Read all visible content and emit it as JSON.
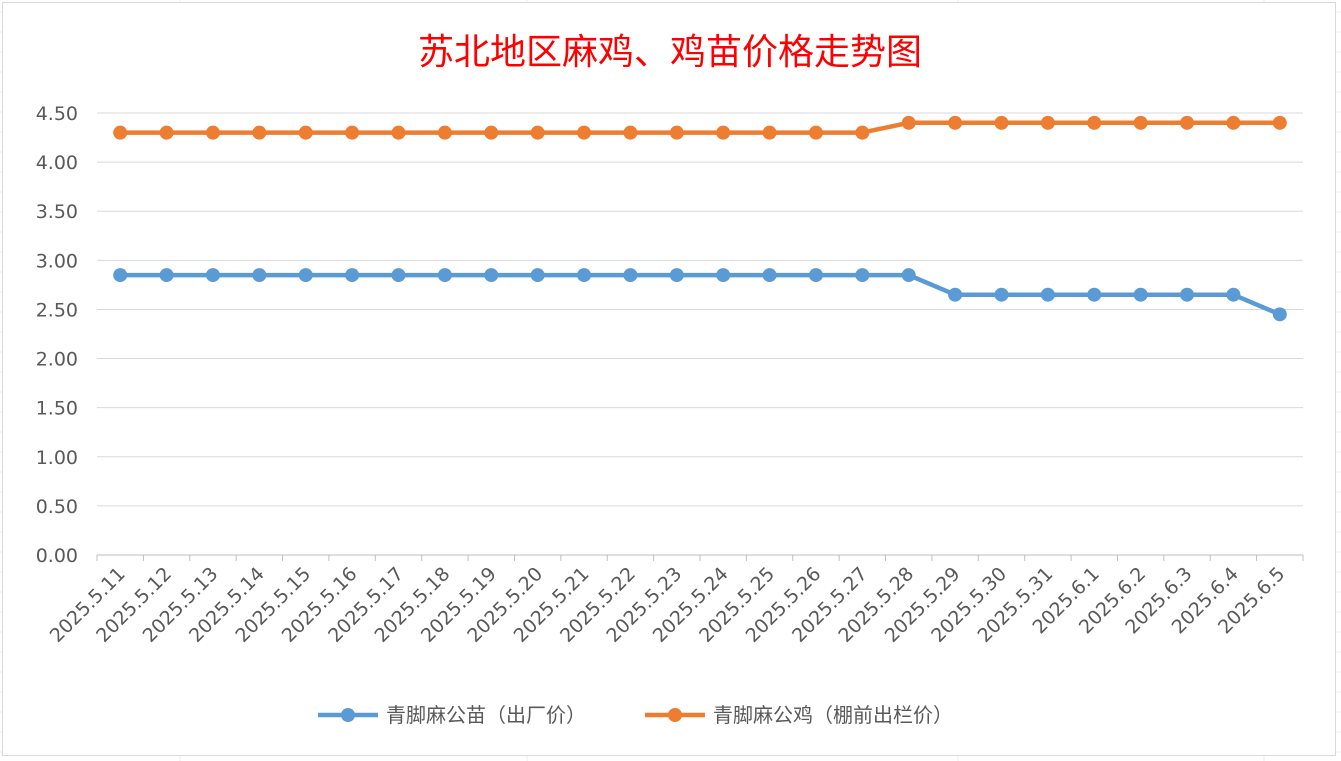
{
  "chart_data": {
    "type": "line",
    "title": "苏北地区麻鸡、鸡苗价格走势图",
    "xlabel": "",
    "ylabel": "",
    "categories": [
      "2025.5.11",
      "2025.5.12",
      "2025.5.13",
      "2025.5.14",
      "2025.5.15",
      "2025.5.16",
      "2025.5.17",
      "2025.5.18",
      "2025.5.19",
      "2025.5.20",
      "2025.5.21",
      "2025.5.22",
      "2025.5.23",
      "2025.5.24",
      "2025.5.25",
      "2025.5.26",
      "2025.5.27",
      "2025.5.28",
      "2025.5.29",
      "2025.5.30",
      "2025.5.31",
      "2025.6.1",
      "2025.6.2",
      "2025.6.3",
      "2025.6.4",
      "2025.6.5"
    ],
    "y_ticks": [
      "0.00",
      "0.50",
      "1.00",
      "1.50",
      "2.00",
      "2.50",
      "3.00",
      "3.50",
      "4.00",
      "4.50"
    ],
    "ylim": [
      0,
      4.5
    ],
    "grid": true,
    "legend_position": "bottom",
    "series": [
      {
        "name": "青脚麻公苗（出厂价）",
        "color": "#5b9bd5",
        "values": [
          2.85,
          2.85,
          2.85,
          2.85,
          2.85,
          2.85,
          2.85,
          2.85,
          2.85,
          2.85,
          2.85,
          2.85,
          2.85,
          2.85,
          2.85,
          2.85,
          2.85,
          2.85,
          2.65,
          2.65,
          2.65,
          2.65,
          2.65,
          2.65,
          2.65,
          2.45
        ]
      },
      {
        "name": "青脚麻公鸡（棚前出栏价）",
        "color": "#ed7d31",
        "values": [
          4.3,
          4.3,
          4.3,
          4.3,
          4.3,
          4.3,
          4.3,
          4.3,
          4.3,
          4.3,
          4.3,
          4.3,
          4.3,
          4.3,
          4.3,
          4.3,
          4.3,
          4.4,
          4.4,
          4.4,
          4.4,
          4.4,
          4.4,
          4.4,
          4.4,
          4.4
        ]
      }
    ]
  }
}
